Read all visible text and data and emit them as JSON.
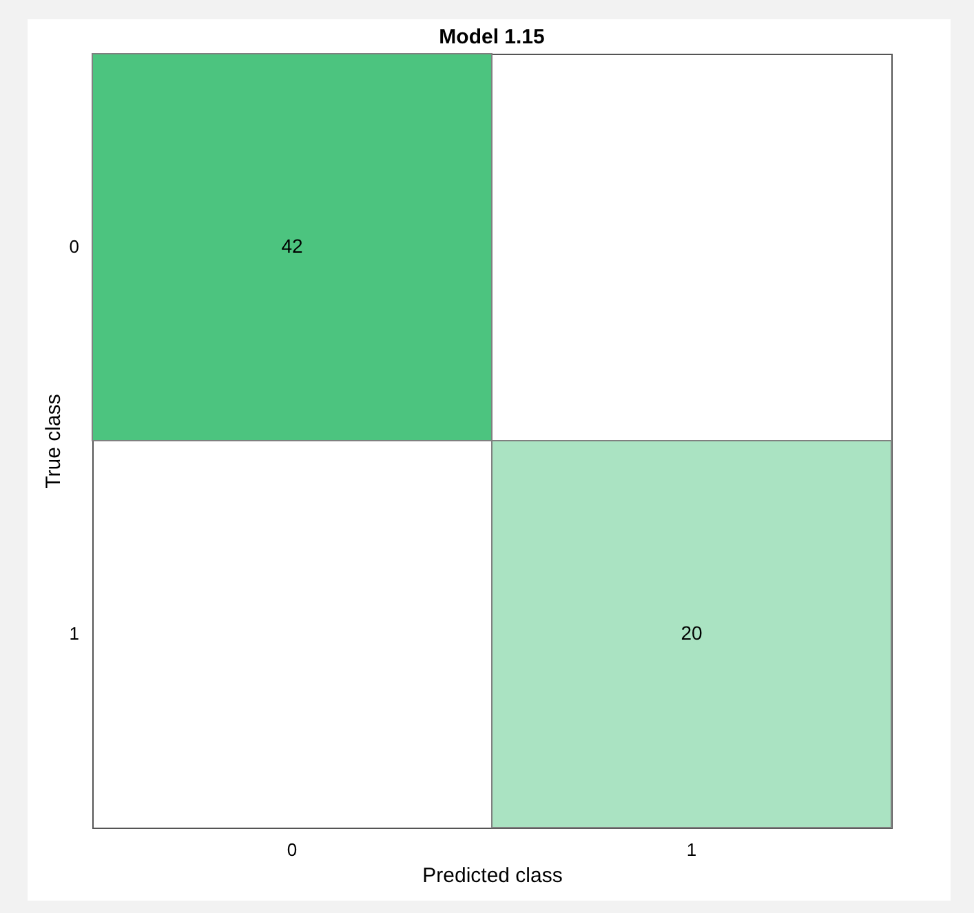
{
  "chart_data": {
    "type": "heatmap",
    "title": "Model 1.15",
    "xlabel": "Predicted class",
    "ylabel": "True class",
    "categories": [
      "0",
      "1"
    ],
    "y_categories": [
      "0",
      "1"
    ],
    "cells": [
      [
        42,
        null
      ],
      [
        null,
        20
      ]
    ],
    "color": "#4cc47f",
    "data_labels": true
  }
}
